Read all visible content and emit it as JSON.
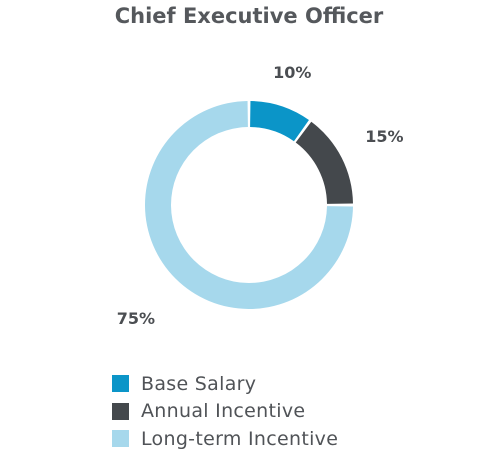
{
  "chart_data": {
    "type": "pie",
    "donut": true,
    "title": "Chief Executive Officer",
    "categories": [
      "Base Salary",
      "Annual Incentive",
      "Long-term Incentive"
    ],
    "values": [
      10,
      15,
      75
    ],
    "labels": [
      "10%",
      "15%",
      "75%"
    ],
    "colors": [
      "#0b95c8",
      "#44484c",
      "#a6d8ec"
    ],
    "legend": "bottom"
  }
}
